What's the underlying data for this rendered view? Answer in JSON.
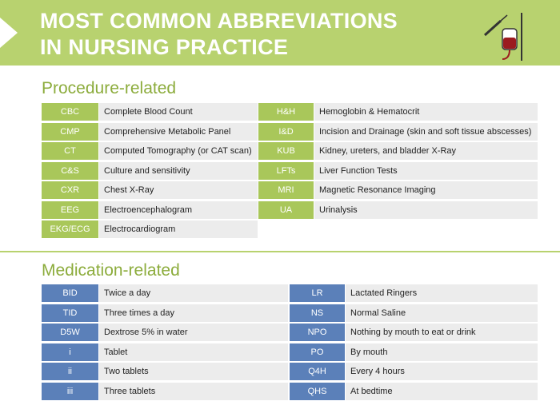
{
  "header": {
    "title": [
      "MOST COMMON ABBREVIATIONS",
      "IN NURSING PRACTICE"
    ]
  },
  "sections": [
    {
      "title": "Procedure-related",
      "left": [
        [
          "CBC",
          "Complete Blood Count"
        ],
        [
          "CMP",
          "Comprehensive Metabolic Panel"
        ],
        [
          "CT",
          "Computed Tomography (or CAT scan)"
        ],
        [
          "C&S",
          "Culture and sensitivity"
        ],
        [
          "CXR",
          "Chest X-Ray"
        ],
        [
          "EEG",
          "Electroencephalogram"
        ],
        [
          "EKG/ECG",
          "Electrocardiogram"
        ]
      ],
      "right": [
        [
          "H&H",
          "Hemoglobin & Hematocrit"
        ],
        [
          "I&D",
          "Incision and Drainage (skin and soft tissue abscesses)"
        ],
        [
          "KUB",
          "Kidney, ureters, and bladder X-Ray"
        ],
        [
          "LFTs",
          "Liver Function Tests"
        ],
        [
          "MRI",
          "Magnetic Resonance Imaging"
        ],
        [
          "UA",
          "Urinalysis"
        ]
      ]
    },
    {
      "title": "Medication-related",
      "left": [
        [
          "BID",
          "Twice a day"
        ],
        [
          "TID",
          "Three times a day"
        ],
        [
          "D5W",
          "Dextrose 5% in water"
        ],
        [
          "i",
          "Tablet"
        ],
        [
          "ii",
          "Two tablets"
        ],
        [
          "iii",
          "Three tablets"
        ]
      ],
      "right": [
        [
          "LR",
          "Lactated Ringers"
        ],
        [
          "NS",
          "Normal Saline"
        ],
        [
          "NPO",
          "Nothing by mouth to eat or drink"
        ],
        [
          "PO",
          "By mouth"
        ],
        [
          "Q4H",
          "Every 4 hours"
        ],
        [
          "QHS",
          "At bedtime"
        ]
      ]
    }
  ]
}
